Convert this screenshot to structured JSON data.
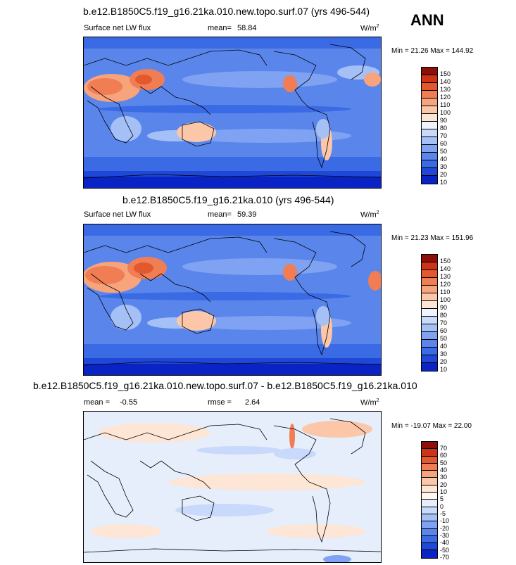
{
  "season": "ANN",
  "colors": {
    "abs": [
      "#08035a",
      "#0a23c4",
      "#1f48d8",
      "#3a6ae4",
      "#5a86ec",
      "#7fa2f2",
      "#a4c0f7",
      "#c9d9fb",
      "#eef3fd",
      "#fde6d6",
      "#fbc7a8",
      "#f7a37b",
      "#f07d54",
      "#e4582e",
      "#cc3415",
      "#8c0f08"
    ],
    "diff": [
      "#08035a",
      "#0a23c4",
      "#1f48d8",
      "#3a6ae4",
      "#5a86ec",
      "#7fa2f2",
      "#a4c0f7",
      "#c9d9fb",
      "#e6eefc",
      "#fde6d6",
      "#fbc7a8",
      "#f7a37b",
      "#f07d54",
      "#e4582e",
      "#cc3415",
      "#8c0f08"
    ]
  },
  "panels": [
    {
      "title": "b.e12.B1850C5.f19_g16.21ka.010.new.topo.surf.07 (yrs 496-544)",
      "variable": "Surface net LW flux",
      "stat_label": "mean=",
      "stat_value": "58.84",
      "units": "W/m",
      "units_exp": "2",
      "minmax": "Min =  21.26 Max = 144.92",
      "colorbar_labels": [
        "150",
        "140",
        "130",
        "120",
        "110",
        "100",
        "90",
        "80",
        "70",
        "60",
        "50",
        "40",
        "30",
        "20",
        "10"
      ]
    },
    {
      "title": "b.e12.B1850C5.f19_g16.21ka.010 (yrs 496-544)",
      "variable": "Surface net LW flux",
      "stat_label": "mean=",
      "stat_value": "59.39",
      "units": "W/m",
      "units_exp": "2",
      "minmax": "Min =  21.23 Max = 151.96",
      "colorbar_labels": [
        "150",
        "140",
        "130",
        "120",
        "110",
        "100",
        "90",
        "80",
        "70",
        "60",
        "50",
        "40",
        "30",
        "20",
        "10"
      ]
    },
    {
      "title": "b.e12.B1850C5.f19_g16.21ka.010.new.topo.surf.07 - b.e12.B1850C5.f19_g16.21ka.010",
      "mean_label": "mean =",
      "mean_value": "-0.55",
      "rmse_label": "rmse =",
      "rmse_value": "2.64",
      "units": "W/m",
      "units_exp": "2",
      "minmax": "Min = -19.07 Max =  22.00",
      "colorbar_labels": [
        "70",
        "60",
        "50",
        "40",
        "30",
        "20",
        "10",
        "5",
        "0",
        "-5",
        "-10",
        "-20",
        "-30",
        "-40",
        "-50",
        "-70"
      ]
    }
  ]
}
